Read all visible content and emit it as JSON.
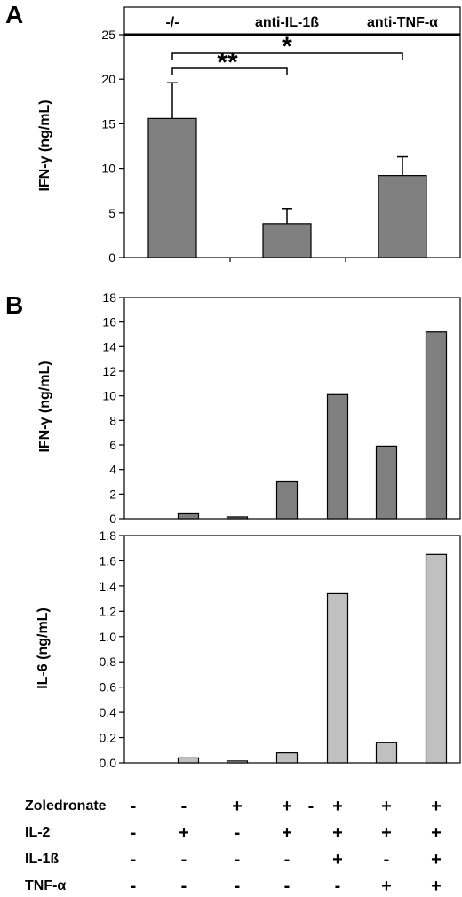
{
  "chart_data": [
    {
      "panel": "A",
      "type": "bar",
      "categories": [
        "-/-",
        "anti-IL-1ß",
        "anti-TNF-α"
      ],
      "values": [
        15.6,
        3.8,
        9.2
      ],
      "errors": [
        4.0,
        1.7,
        2.1
      ],
      "ylabel": "IFN-γ (ng/mL)",
      "ylim": [
        0,
        25
      ],
      "yticks": [
        "0",
        "5",
        "10",
        "15",
        "20",
        "25"
      ],
      "bar_color": "#808080",
      "significance": [
        {
          "from": 0,
          "to": 1,
          "label": "**"
        },
        {
          "from": 0,
          "to": 2,
          "label": "*"
        }
      ]
    },
    {
      "panel": "B",
      "type": "bar",
      "values": [
        0.0,
        0.4,
        0.15,
        3.0,
        10.1,
        5.9,
        15.2
      ],
      "ylabel": "IFN-γ (ng/mL)",
      "ylim": [
        0,
        18
      ],
      "yticks": [
        "0",
        "2",
        "4",
        "6",
        "8",
        "10",
        "12",
        "14",
        "16",
        "18"
      ],
      "bar_color": "#808080"
    },
    {
      "panel": "",
      "type": "bar",
      "values": [
        0.0,
        0.04,
        0.015,
        0.08,
        1.34,
        0.16,
        1.65
      ],
      "ylabel": "IL-6 (ng/mL)",
      "ylim": [
        0,
        1.8
      ],
      "yticks": [
        "0.0",
        "0.2",
        "0.4",
        "0.6",
        "0.8",
        "1.0",
        "1.2",
        "1.4",
        "1.6",
        "1.8"
      ],
      "bar_color": "#c0c0c0"
    }
  ],
  "conditions": [
    {
      "label": "Zoledronate",
      "marks": [
        "-",
        "-",
        "+",
        "+",
        "+",
        "+",
        "+"
      ]
    },
    {
      "label": "IL-2",
      "marks": [
        "-",
        "+",
        "-",
        "+",
        "+",
        "+",
        "+"
      ]
    },
    {
      "label": "IL-1ß",
      "marks": [
        "-",
        "-",
        "-",
        "-",
        "+",
        "-",
        "+"
      ]
    },
    {
      "label": "TNF-α",
      "marks": [
        "-",
        "-",
        "-",
        "-",
        "-",
        "+",
        "+"
      ]
    }
  ],
  "stray_mark": "-"
}
